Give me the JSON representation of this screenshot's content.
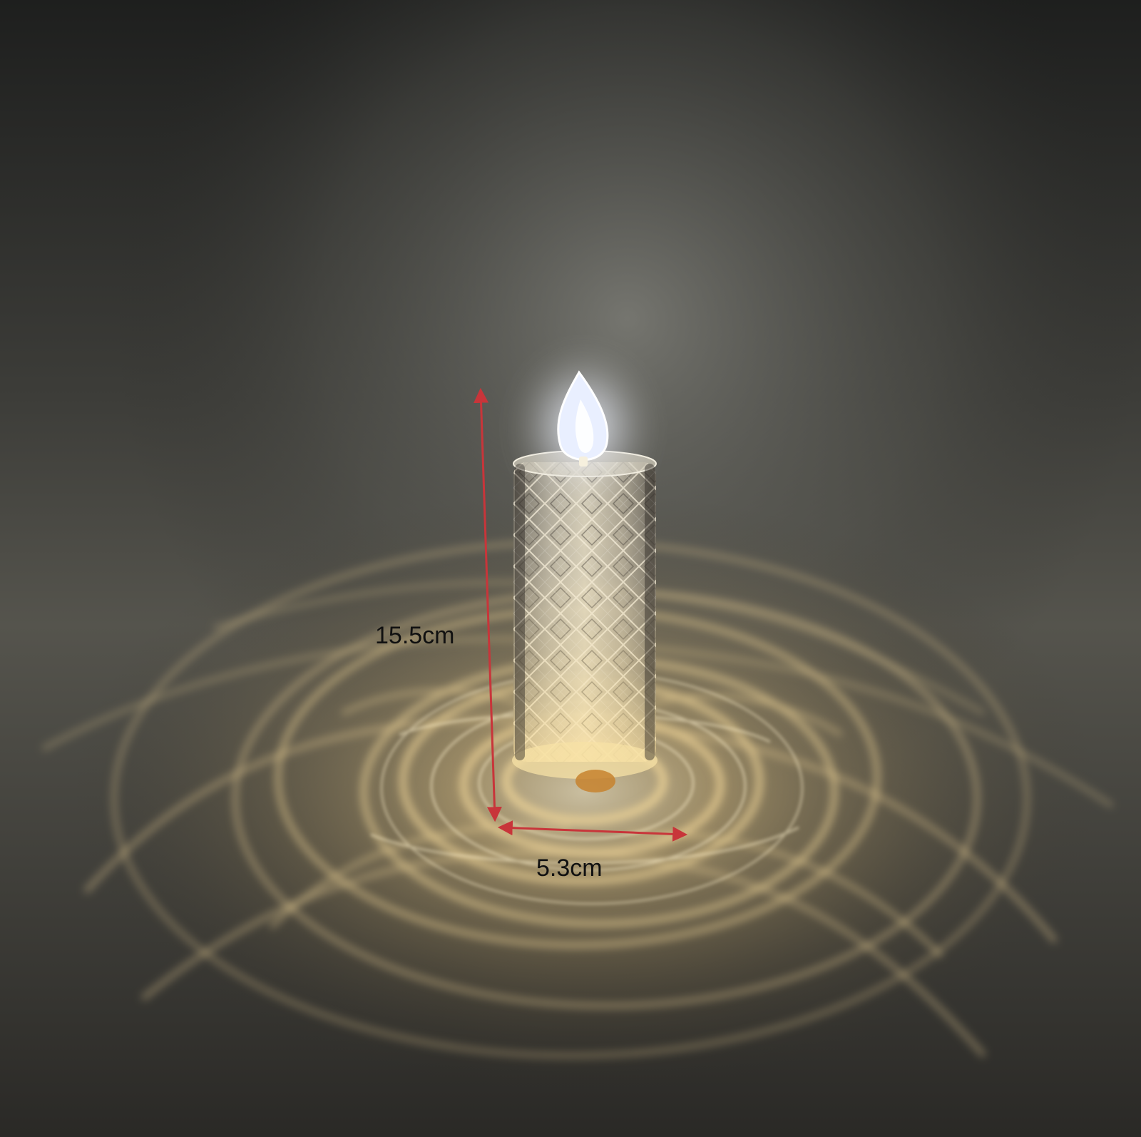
{
  "dimensions": {
    "height_label": "15.5cm",
    "width_label": "5.3cm"
  },
  "colors": {
    "background_dark": "#1c1d1c",
    "background_mid": "#5a5a54",
    "glow": "#f2d9a0",
    "ripple": "#e9c98a",
    "flame": "#eef3ff",
    "dimension_arrow": "#c8353a",
    "label_text": "#111111"
  },
  "objects": {
    "product": "crystal-candle-lamp",
    "flame_icon": "flame-icon",
    "light_pattern": "rose-ripple-reflection"
  }
}
